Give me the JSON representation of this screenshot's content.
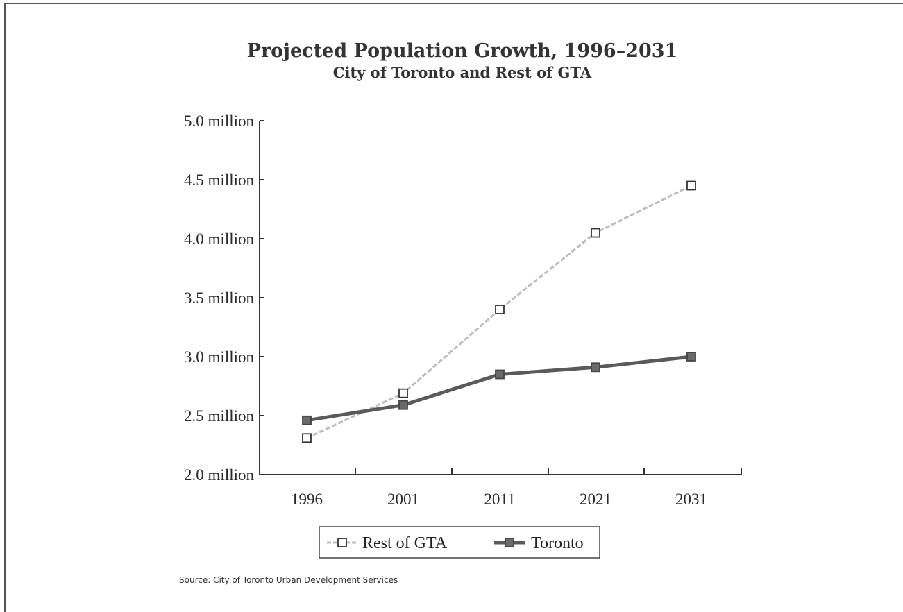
{
  "chart_data": {
    "type": "line",
    "title": "Projected Population Growth, 1996–2031",
    "subtitle": "City of Toronto and Rest of GTA",
    "categories": [
      "1996",
      "2001",
      "2011",
      "2021",
      "2031"
    ],
    "y_ticks": [
      {
        "value": 2.0,
        "label": "2.0 million"
      },
      {
        "value": 2.5,
        "label": "2.5 million"
      },
      {
        "value": 3.0,
        "label": "3.0 million"
      },
      {
        "value": 3.5,
        "label": "3.5 million"
      },
      {
        "value": 4.0,
        "label": "4.0 million"
      },
      {
        "value": 4.5,
        "label": "4.5 million"
      },
      {
        "value": 5.0,
        "label": "5.0 million"
      }
    ],
    "ylim": [
      2.0,
      5.0
    ],
    "grid": false,
    "legend_position": "bottom",
    "series": [
      {
        "name": "Rest of GTA",
        "values": [
          2.31,
          2.69,
          3.4,
          4.05,
          4.45
        ],
        "color": "#bdbdbd",
        "marker": "open-square"
      },
      {
        "name": "Toronto",
        "values": [
          2.46,
          2.59,
          2.85,
          2.91,
          3.0
        ],
        "color": "#5a5a5a",
        "marker": "filled-square"
      }
    ],
    "source": "Source: City of Toronto Urban Development Services"
  }
}
